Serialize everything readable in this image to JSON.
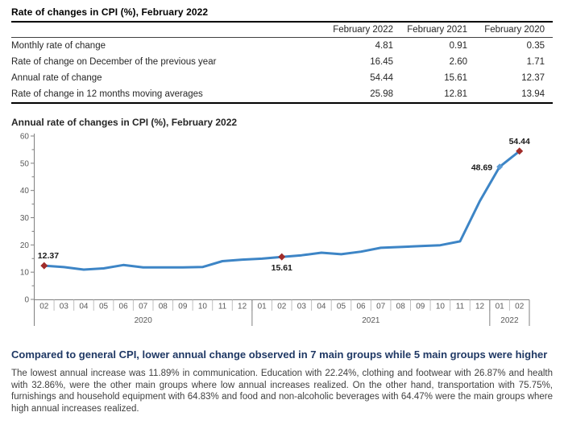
{
  "table": {
    "title": "Rate of changes in CPI (%), February 2022",
    "columns": [
      "February 2022",
      "February 2021",
      "February 2020"
    ],
    "rows": [
      {
        "label": "Monthly rate of change",
        "values": [
          "4.81",
          "0.91",
          "0.35"
        ]
      },
      {
        "label": "Rate of change on December of the previous year",
        "values": [
          "16.45",
          "2.60",
          "1.71"
        ]
      },
      {
        "label": "Annual rate of change",
        "values": [
          "54.44",
          "15.61",
          "12.37"
        ]
      },
      {
        "label": "Rate of change in 12 months moving averages",
        "values": [
          "25.98",
          "12.81",
          "13.94"
        ]
      }
    ]
  },
  "chart_data": {
    "type": "line",
    "title": "Annual rate of changes in CPI (%), February 2022",
    "x": [
      "02",
      "03",
      "04",
      "05",
      "06",
      "07",
      "08",
      "09",
      "10",
      "11",
      "12",
      "01",
      "02",
      "03",
      "04",
      "05",
      "06",
      "07",
      "08",
      "09",
      "10",
      "11",
      "12",
      "01",
      "02"
    ],
    "year_groups": [
      {
        "label": "2020",
        "count": 11
      },
      {
        "label": "2021",
        "count": 12
      },
      {
        "label": "2022",
        "count": 2
      }
    ],
    "values": [
      12.37,
      11.86,
      10.94,
      11.39,
      12.62,
      11.76,
      11.77,
      11.75,
      11.89,
      14.03,
      14.6,
      14.97,
      15.61,
      16.19,
      17.14,
      16.59,
      17.53,
      18.95,
      19.25,
      19.58,
      19.89,
      21.31,
      36.08,
      48.69,
      54.44
    ],
    "ylim": [
      0,
      60
    ],
    "yticks": [
      0,
      10,
      20,
      30,
      40,
      50,
      60
    ],
    "minor_tick_step": 5,
    "grid": false,
    "legend": "none",
    "xlabel": "",
    "ylabel": "",
    "line_color": "#3d85c6",
    "marker_color_red": "#a02c2a",
    "marker_color_blue": "#5b9bd5",
    "annotations": [
      {
        "index": 0,
        "text": "12.37",
        "position": "above-right",
        "marker": "red"
      },
      {
        "index": 12,
        "text": "15.61",
        "position": "below",
        "marker": "red"
      },
      {
        "index": 23,
        "text": "48.69",
        "position": "left",
        "marker": "blue"
      },
      {
        "index": 24,
        "text": "54.44",
        "position": "above",
        "marker": "red"
      }
    ]
  },
  "summary": {
    "heading": "Compared to general CPI, lower annual change observed in 7 main groups while 5 main groups were higher",
    "body": "The lowest annual increase was 11.89% in communication. Education with 22.24%, clothing and footwear with 26.87% and health with 32.86%, were the other main groups where low annual increases realized. On the other hand, transportation with 75.75%, furnishings and household equipment with 64.83% and food and non-alcoholic beverages with 64.47% were the main groups where high annual increases realized."
  }
}
